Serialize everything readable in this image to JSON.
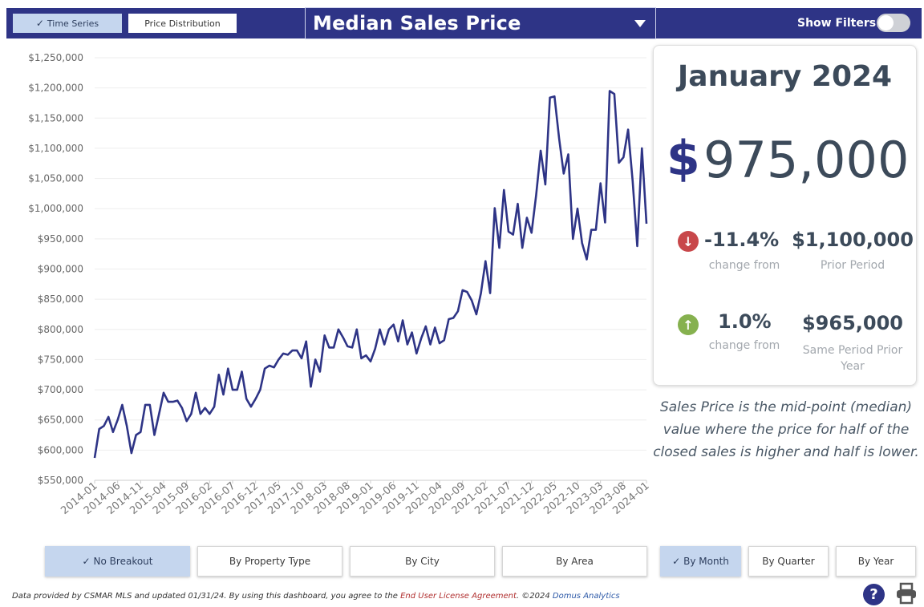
{
  "header": {
    "view_toggles": [
      {
        "label": "Time Series",
        "active": true
      },
      {
        "label": "Price Distribution",
        "active": false
      }
    ],
    "metric_title": "Median Sales Price",
    "filters_label": "Show Filters:",
    "filters_on": false
  },
  "summary": {
    "period": "January 2024",
    "currency_symbol": "$",
    "value": "975,000",
    "change_prior": {
      "pct": "-11.4%",
      "label": "change from",
      "direction": "down"
    },
    "prior_value": {
      "value": "$1,100,000",
      "label": "Prior Period"
    },
    "change_year": {
      "pct": "1.0%",
      "label": "change from",
      "direction": "up"
    },
    "year_value": {
      "value": "$965,000",
      "label": "Same Period Prior Year"
    }
  },
  "description": "Sales Price is the mid-point (median) value where the price for half of the closed sales is higher and half is lower.",
  "breakout_buttons": [
    {
      "label": "No Breakout",
      "active": true
    },
    {
      "label": "By Property Type",
      "active": false
    },
    {
      "label": "By City",
      "active": false
    },
    {
      "label": "By Area",
      "active": false
    }
  ],
  "period_buttons": [
    {
      "label": "By Month",
      "active": true
    },
    {
      "label": "By Quarter",
      "active": false
    },
    {
      "label": "By Year",
      "active": false
    }
  ],
  "footer": {
    "text1": "Data provided by CSMAR MLS and updated 01/31/24.  By using this dashboard, you agree to the ",
    "link1": "End User License Agreement",
    "text2": ".  ©2024 ",
    "link2": "Domus Analytics"
  },
  "icons": {
    "help": "help-icon",
    "print": "printer-icon"
  },
  "colors": {
    "accent": "#2e3486",
    "down": "#c8474a",
    "up": "#86b14f",
    "active_button": "#c5d6ee"
  },
  "chart_data": {
    "type": "line",
    "title": "",
    "xlabel": "",
    "ylabel": "",
    "ylim": [
      550000,
      1250000
    ],
    "yticks": [
      550000,
      600000,
      650000,
      700000,
      750000,
      800000,
      850000,
      900000,
      950000,
      1000000,
      1050000,
      1100000,
      1150000,
      1200000,
      1250000
    ],
    "ytick_labels": [
      "$550,000",
      "$600,000",
      "$650,000",
      "$700,000",
      "$750,000",
      "$800,000",
      "$850,000",
      "$900,000",
      "$950,000",
      "$1,000,000",
      "$1,050,000",
      "$1,100,000",
      "$1,150,000",
      "$1,200,000",
      "$1,250,000"
    ],
    "xtick_labels": [
      "2014-01",
      "2014-06",
      "2014-11",
      "2015-04",
      "2015-09",
      "2016-02",
      "2016-07",
      "2016-12",
      "2017-05",
      "2017-10",
      "2018-03",
      "2018-08",
      "2019-01",
      "2019-06",
      "2019-11",
      "2020-04",
      "2020-09",
      "2021-02",
      "2021-07",
      "2021-12",
      "2022-05",
      "2022-10",
      "2023-03",
      "2023-08",
      "2024-01"
    ],
    "x_start": "2014-01",
    "grid": true,
    "series": [
      {
        "name": "",
        "color": "#2e3486",
        "values": [
          587000,
          635000,
          640000,
          655000,
          630000,
          650000,
          675000,
          640000,
          595000,
          625000,
          630000,
          675000,
          675000,
          625000,
          660000,
          695000,
          680000,
          680000,
          682000,
          670000,
          648000,
          660000,
          695000,
          660000,
          670000,
          660000,
          672000,
          725000,
          692000,
          735000,
          700000,
          700000,
          730000,
          685000,
          672000,
          685000,
          700000,
          735000,
          740000,
          737000,
          750000,
          760000,
          758000,
          765000,
          765000,
          752000,
          780000,
          705000,
          750000,
          730000,
          790000,
          770000,
          770000,
          800000,
          787000,
          772000,
          770000,
          800000,
          752000,
          757000,
          747000,
          768000,
          800000,
          775000,
          800000,
          808000,
          780000,
          815000,
          775000,
          795000,
          760000,
          785000,
          805000,
          775000,
          803000,
          777000,
          782000,
          817000,
          819000,
          830000,
          865000,
          862000,
          848000,
          825000,
          860000,
          913000,
          860000,
          1001000,
          935000,
          1031000,
          962000,
          957000,
          1008000,
          935000,
          985000,
          960000,
          1022000,
          1096000,
          1040000,
          1184000,
          1186000,
          1116000,
          1058000,
          1090000,
          950000,
          1000000,
          943000,
          916000,
          965000,
          965000,
          1042000,
          977000,
          1195000,
          1190000,
          1076000,
          1085000,
          1131000,
          1045000,
          938000,
          1100000,
          975000
        ]
      }
    ]
  }
}
